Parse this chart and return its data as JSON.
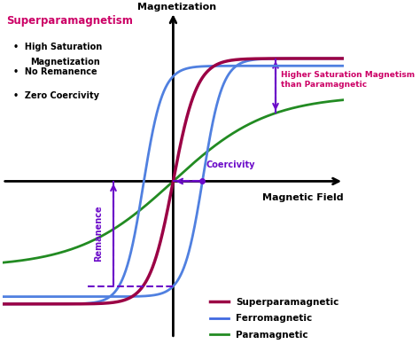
{
  "title_magnetization": "Magnetization",
  "title_magnetic_field": "Magnetic Field",
  "superparamagnetism_title": "Superparamagnetism",
  "bullets": [
    "High Saturation\nMagnetization",
    "No Remanence",
    "Zero Coercivity"
  ],
  "legend_labels": [
    "Superparamagnetic",
    "Ferromagnetic",
    "Paramagnetic"
  ],
  "legend_colors": [
    "#9B0045",
    "#4169E1",
    "#228B22"
  ],
  "curve_colors": {
    "superparamagnetic": "#9B0045",
    "ferromagnetic": "#5080E0",
    "paramagnetic": "#228B22"
  },
  "annotation_color": "#6B0AC9",
  "remanence_label": "Remanence",
  "coercivity_label": "Coercivity",
  "higher_saturation_label": "Higher Saturation Magnetism\nthan Paramagnetic",
  "background_color": "#ffffff",
  "xlim": [
    -4,
    4
  ],
  "ylim": [
    -1.3,
    1.4
  ]
}
